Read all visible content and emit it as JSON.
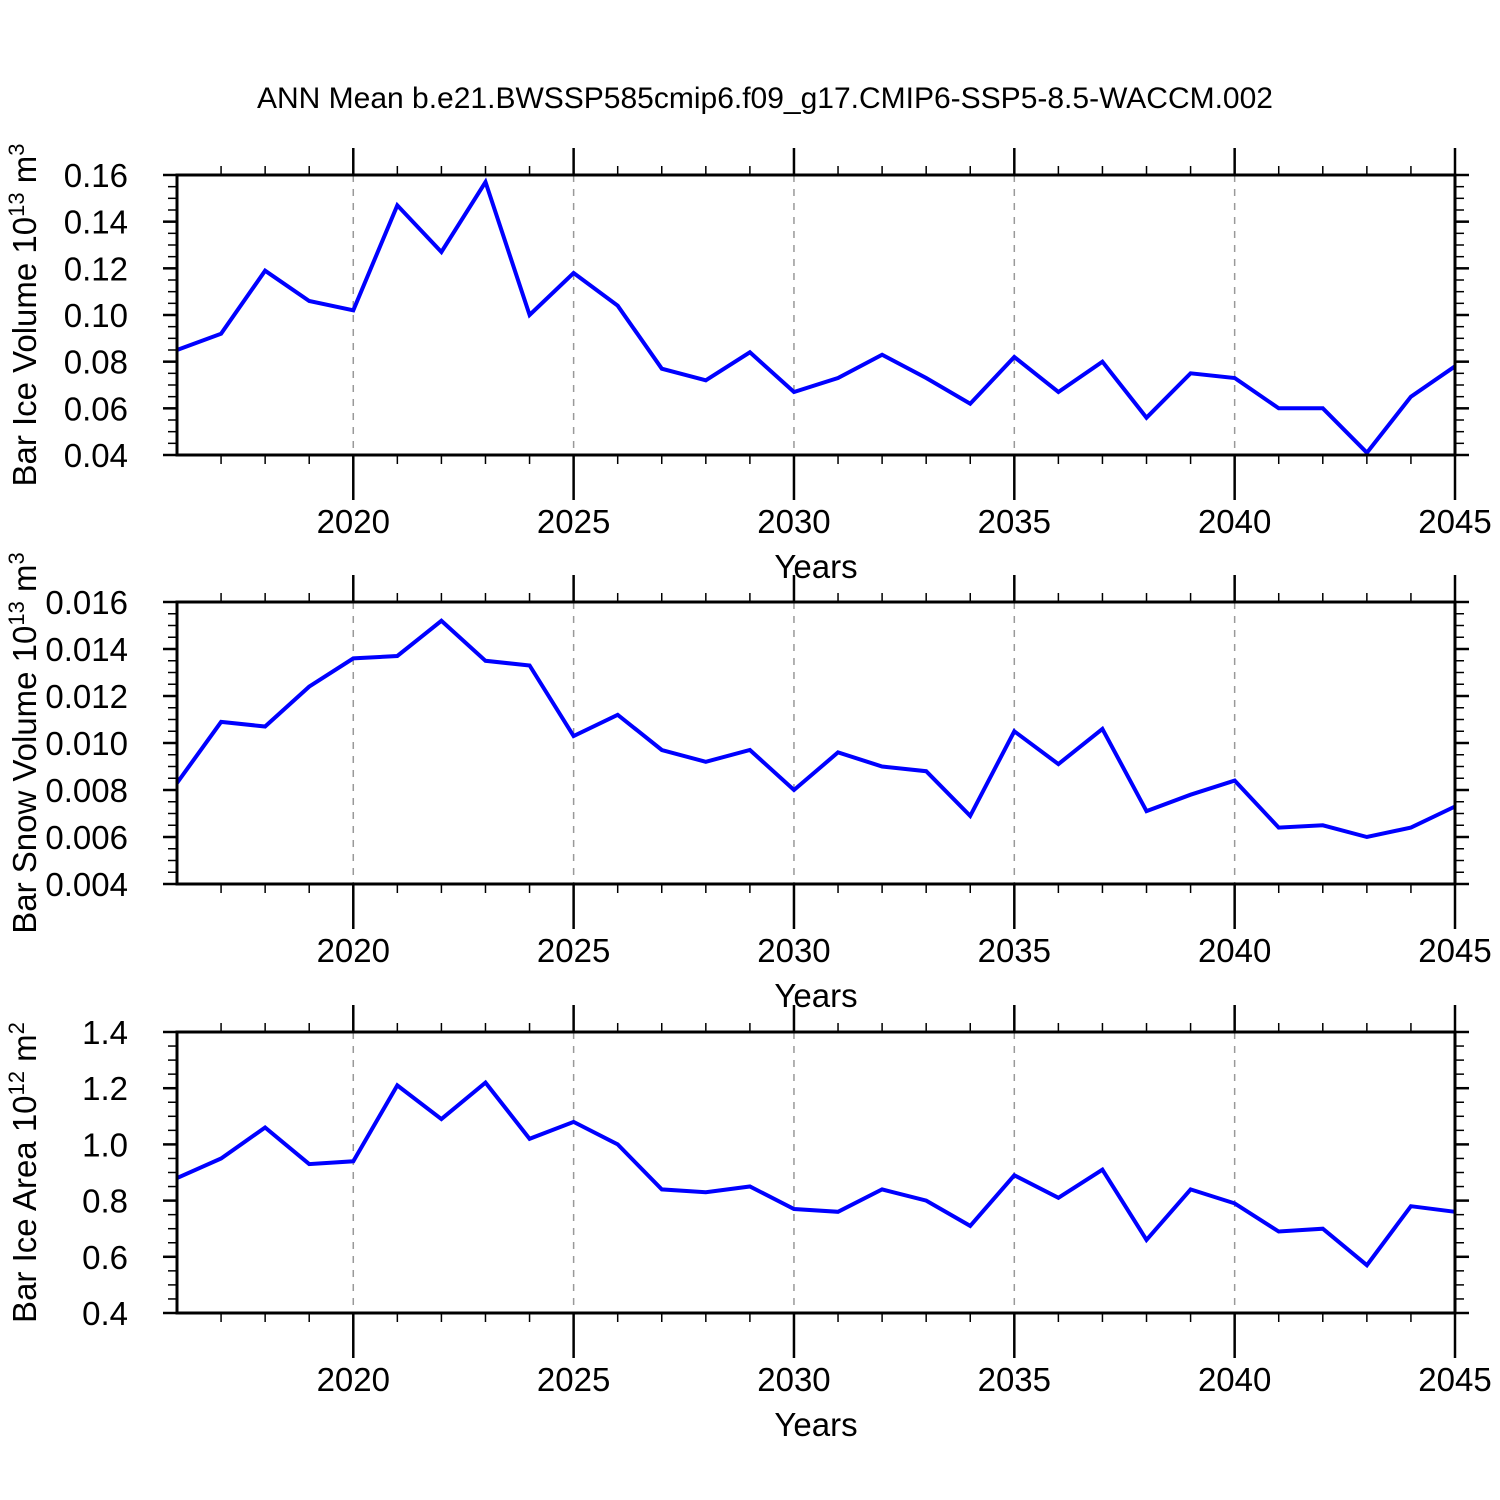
{
  "title": "ANN Mean b.e21.BWSSP585cmip6.f09_g17.CMIP6-SSP5-8.5-WACCM.002",
  "style": {
    "background": "#ffffff",
    "line_color": "#0000ff",
    "axis_color": "#000000",
    "grid_color": "#999999",
    "text_color": "#000000"
  },
  "x_axis": {
    "label": "Years",
    "start_year": 2016,
    "end_year": 2045,
    "minor_tick_step": 1,
    "major_tick_step": 5,
    "xtick_labels": [
      "2020",
      "2025",
      "2030",
      "2035",
      "2040",
      "2045"
    ],
    "gridline_years": [
      2020,
      2025,
      2030,
      2035,
      2040
    ]
  },
  "chart_data": [
    {
      "type": "line",
      "panel": "ice-volume",
      "title": "",
      "xlabel": "Years",
      "ylabel": "Bar Ice Volume 10^13 m^3",
      "ylabel_parts": [
        "Bar Ice Volume 10",
        {
          "sup": "13"
        },
        " m",
        {
          "sup": "3"
        }
      ],
      "legend_position": "none",
      "grid": "vertical-dashed",
      "ylim": [
        0.04,
        0.16
      ],
      "ytick_step": 0.02,
      "yminor_step": 0.005,
      "ytick_labels": [
        "0.04",
        "0.06",
        "0.08",
        "0.10",
        "0.12",
        "0.14",
        "0.16"
      ],
      "x": [
        2016,
        2017,
        2018,
        2019,
        2020,
        2021,
        2022,
        2023,
        2024,
        2025,
        2026,
        2027,
        2028,
        2029,
        2030,
        2031,
        2032,
        2033,
        2034,
        2035,
        2036,
        2037,
        2038,
        2039,
        2040,
        2041,
        2042,
        2043,
        2044,
        2045
      ],
      "values": [
        0.085,
        0.092,
        0.119,
        0.106,
        0.102,
        0.147,
        0.127,
        0.157,
        0.1,
        0.118,
        0.104,
        0.077,
        0.072,
        0.084,
        0.067,
        0.073,
        0.083,
        0.073,
        0.062,
        0.082,
        0.067,
        0.08,
        0.056,
        0.075,
        0.073,
        0.06,
        0.06,
        0.041,
        0.065,
        0.078
      ]
    },
    {
      "type": "line",
      "panel": "snow-volume",
      "title": "",
      "xlabel": "Years",
      "ylabel": "Bar Snow Volume 10^13 m^3",
      "ylabel_parts": [
        "Bar Snow Volume 10",
        {
          "sup": "13"
        },
        " m",
        {
          "sup": "3"
        }
      ],
      "legend_position": "none",
      "grid": "vertical-dashed",
      "ylim": [
        0.004,
        0.016
      ],
      "ytick_step": 0.002,
      "yminor_step": 0.0005,
      "ytick_labels": [
        "0.004",
        "0.006",
        "0.008",
        "0.010",
        "0.012",
        "0.014",
        "0.016"
      ],
      "x": [
        2016,
        2017,
        2018,
        2019,
        2020,
        2021,
        2022,
        2023,
        2024,
        2025,
        2026,
        2027,
        2028,
        2029,
        2030,
        2031,
        2032,
        2033,
        2034,
        2035,
        2036,
        2037,
        2038,
        2039,
        2040,
        2041,
        2042,
        2043,
        2044,
        2045
      ],
      "values": [
        0.0083,
        0.0109,
        0.0107,
        0.0124,
        0.0136,
        0.0137,
        0.0152,
        0.0135,
        0.0133,
        0.0103,
        0.0112,
        0.0097,
        0.0092,
        0.0097,
        0.008,
        0.0096,
        0.009,
        0.0088,
        0.0069,
        0.0105,
        0.0091,
        0.0106,
        0.0071,
        0.0078,
        0.0084,
        0.0064,
        0.0065,
        0.006,
        0.0064,
        0.0073
      ]
    },
    {
      "type": "line",
      "panel": "ice-area",
      "title": "",
      "xlabel": "Years",
      "ylabel": "Bar Ice Area 10^12 m^2",
      "ylabel_parts": [
        "Bar Ice Area 10",
        {
          "sup": "12"
        },
        " m",
        {
          "sup": "2"
        }
      ],
      "legend_position": "none",
      "grid": "vertical-dashed",
      "ylim": [
        0.4,
        1.4
      ],
      "ytick_step": 0.2,
      "yminor_step": 0.05,
      "ytick_labels": [
        "0.4",
        "0.6",
        "0.8",
        "1.0",
        "1.2",
        "1.4"
      ],
      "x": [
        2016,
        2017,
        2018,
        2019,
        2020,
        2021,
        2022,
        2023,
        2024,
        2025,
        2026,
        2027,
        2028,
        2029,
        2030,
        2031,
        2032,
        2033,
        2034,
        2035,
        2036,
        2037,
        2038,
        2039,
        2040,
        2041,
        2042,
        2043,
        2044,
        2045
      ],
      "values": [
        0.88,
        0.95,
        1.06,
        0.93,
        0.94,
        1.21,
        1.09,
        1.22,
        1.02,
        1.08,
        1.0,
        0.84,
        0.83,
        0.85,
        0.77,
        0.76,
        0.84,
        0.8,
        0.71,
        0.89,
        0.81,
        0.91,
        0.66,
        0.84,
        0.79,
        0.69,
        0.7,
        0.57,
        0.78,
        0.76
      ]
    }
  ]
}
